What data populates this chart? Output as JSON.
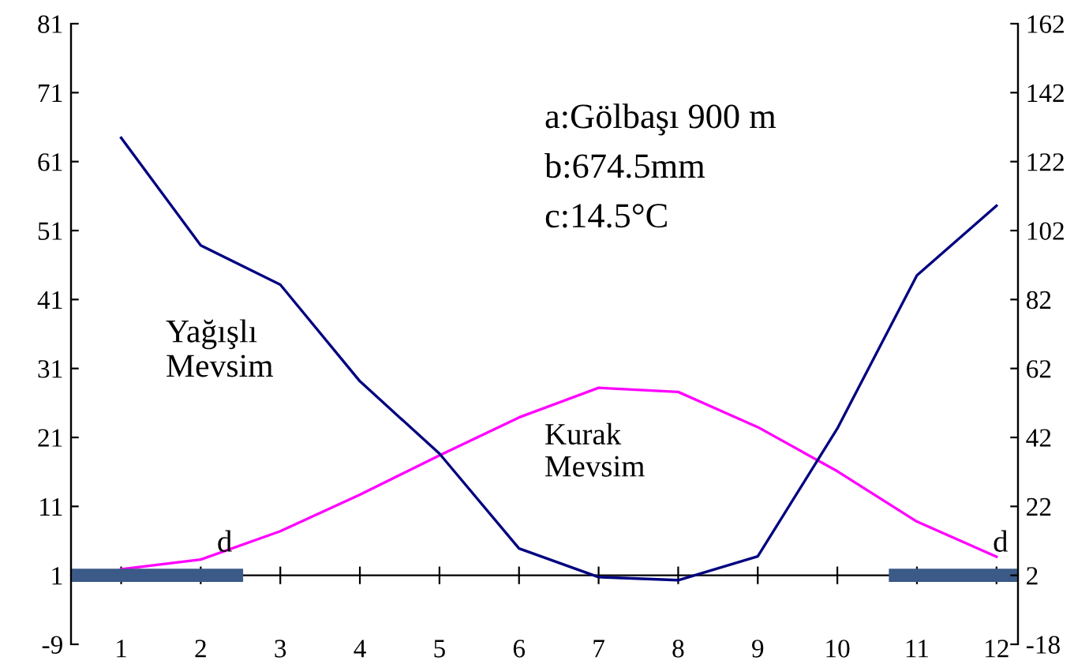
{
  "chart_data": {
    "type": "line",
    "x": [
      1,
      2,
      3,
      4,
      5,
      6,
      7,
      8,
      9,
      10,
      11,
      12
    ],
    "series": [
      {
        "color": "#ff00ff",
        "values": [
          1.9,
          3.3,
          7.4,
          12.7,
          18.4,
          23.9,
          28.2,
          27.6,
          22.5,
          16.1,
          8.8,
          3.7
        ]
      },
      {
        "color": "#000080",
        "axis": "y2",
        "values": [
          128.9,
          97.7,
          86.3,
          58.3,
          37.3,
          9.8,
          1.5,
          0.6,
          7.5,
          44.6,
          89,
          109.2
        ]
      },
      {
        "color": "#3b5a87",
        "x": [
          0.37,
          2.45
        ],
        "values": [
          1,
          1
        ]
      },
      {
        "color": "#3b5a87",
        "x": [
          10.73,
          12.27
        ],
        "values": [
          1,
          1
        ]
      }
    ],
    "xlim": [
      0.37,
      12.27
    ],
    "xticks": [
      1,
      2,
      3,
      4,
      5,
      6,
      7,
      8,
      9,
      10,
      11,
      12
    ],
    "ylim": [
      -9,
      81
    ],
    "yticks": [
      -9,
      1,
      11,
      21,
      31,
      41,
      51,
      61,
      71,
      81
    ],
    "y2lim": [
      -18,
      162
    ],
    "y2ticks": [
      -18,
      2,
      22,
      42,
      62,
      82,
      102,
      122,
      142,
      162
    ],
    "annotations": [
      "a:Gölbaşı 900 m",
      "b:674.5mm",
      "c:14.5°C",
      "Yağışlı\nMevsim",
      "Kurak\nMevsim",
      {
        "text": "d",
        "x": 2.3,
        "y": 3.5
      },
      {
        "text": "d",
        "x": 12.05,
        "y": 3.5
      }
    ],
    "grid": false,
    "legend": false,
    "marker": "none",
    "line_style": "solid"
  }
}
